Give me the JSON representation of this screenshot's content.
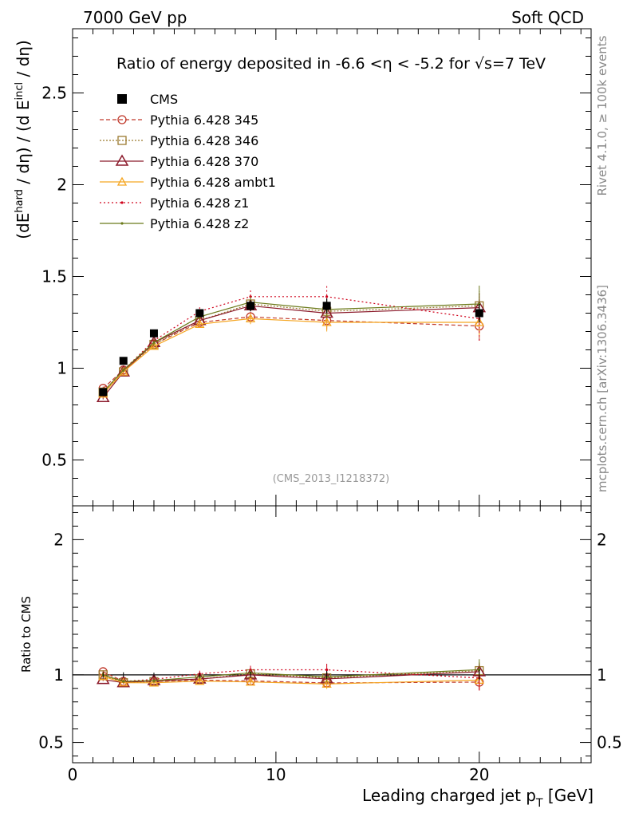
{
  "header": {
    "left": "7000 GeV pp",
    "right": "Soft QCD"
  },
  "side": {
    "rivet": "Rivet 4.1.0, ≥ 100k events",
    "mcplots": "mcplots.cern.ch [arXiv:1306.3436]"
  },
  "chart_data": {
    "type": "line",
    "title": "Ratio of energy deposited in -6.6 <η < -5.2 for √s=7 TeV",
    "watermark": "(CMS_2013_I1218372)",
    "xlabel": "Leading charged jet p_T [GeV]",
    "ylabel": "(dE^hard / dη) / (d E^incl / dη)",
    "ratio_ylabel": "Ratio to CMS",
    "xlim": [
      0,
      25.5
    ],
    "ylim": [
      0.25,
      2.85
    ],
    "ratio_ylim": [
      0.35,
      2.25
    ],
    "x_ticks": [
      "0",
      "10",
      "20"
    ],
    "y_ticks": [
      "0.5",
      "1",
      "1.5",
      "2",
      "2.5"
    ],
    "ratio_y_ticks": [
      "0.5",
      "1",
      "2"
    ],
    "x": [
      1.5,
      2.5,
      4.0,
      6.25,
      8.75,
      12.5,
      20.0
    ],
    "data": {
      "name": "CMS",
      "values": [
        0.87,
        1.04,
        1.19,
        1.3,
        1.34,
        1.34,
        1.3
      ],
      "errors": [
        0.02,
        0.02,
        0.02,
        0.02,
        0.03,
        0.04,
        0.05
      ]
    },
    "series": [
      {
        "name": "Pythia 6.428 345",
        "color": "#c0392b",
        "dash": "5,3",
        "marker": "circle",
        "values": [
          0.89,
          0.99,
          1.13,
          1.25,
          1.28,
          1.26,
          1.23
        ],
        "errors": [
          0.01,
          0.01,
          0.02,
          0.02,
          0.03,
          0.05,
          0.08
        ]
      },
      {
        "name": "Pythia 6.428 346",
        "color": "#9b7a2f",
        "dash": "2,2",
        "marker": "square",
        "values": [
          0.87,
          0.98,
          1.13,
          1.26,
          1.35,
          1.31,
          1.34
        ],
        "errors": [
          0.01,
          0.01,
          0.02,
          0.02,
          0.03,
          0.05,
          0.08
        ]
      },
      {
        "name": "Pythia 6.428 370",
        "color": "#8b1a2b",
        "dash": "",
        "marker": "triangle",
        "values": [
          0.84,
          0.98,
          1.14,
          1.26,
          1.34,
          1.3,
          1.33
        ],
        "errors": [
          0.01,
          0.01,
          0.02,
          0.02,
          0.03,
          0.05,
          0.08
        ]
      },
      {
        "name": "Pythia 6.428 ambt1",
        "color": "#f5a623",
        "dash": "",
        "marker": "triangle-open",
        "values": [
          0.86,
          0.98,
          1.12,
          1.24,
          1.27,
          1.25,
          1.25
        ],
        "errors": [
          0.01,
          0.01,
          0.02,
          0.02,
          0.03,
          0.05,
          0.08
        ]
      },
      {
        "name": "Pythia 6.428 z1",
        "color": "#d0021b",
        "dash": "2,3",
        "marker": "dot",
        "values": [
          0.87,
          0.99,
          1.15,
          1.31,
          1.39,
          1.39,
          1.27
        ],
        "errors": [
          0.01,
          0.01,
          0.02,
          0.03,
          0.04,
          0.06,
          0.12
        ]
      },
      {
        "name": "Pythia 6.428 z2",
        "color": "#6b7a1a",
        "dash": "",
        "marker": "dot",
        "values": [
          0.87,
          0.99,
          1.14,
          1.28,
          1.36,
          1.32,
          1.35
        ],
        "errors": [
          0.01,
          0.01,
          0.02,
          0.02,
          0.03,
          0.05,
          0.1
        ]
      }
    ]
  }
}
